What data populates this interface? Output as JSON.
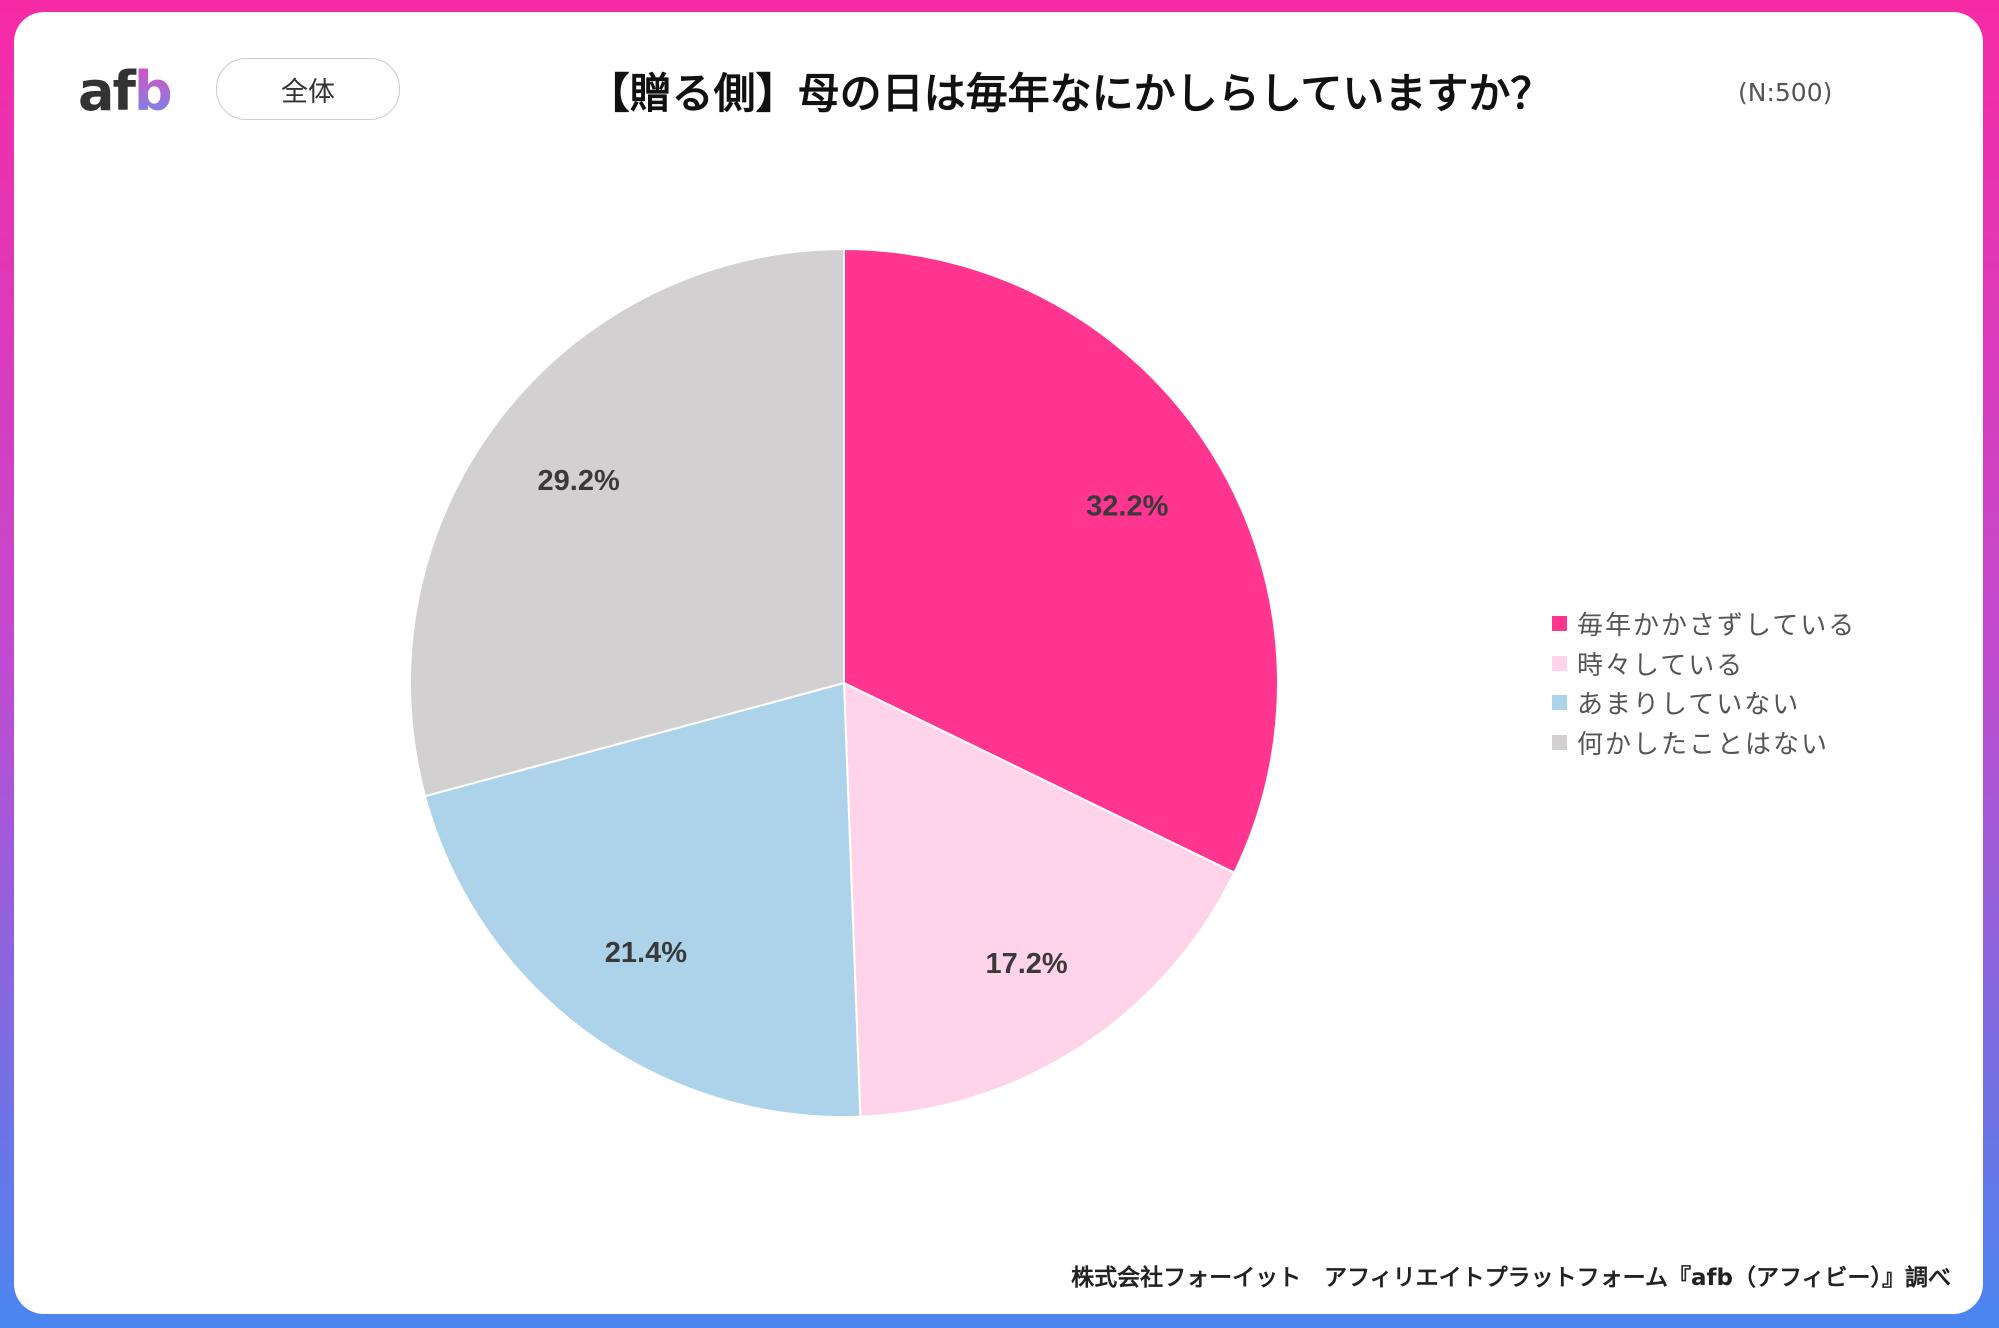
{
  "header": {
    "logo": "afb",
    "segment": "全体",
    "title": "【贈る側】母の日は毎年なにかしらしていますか？",
    "sample": "(N:500)"
  },
  "footer": "株式会社フォーイット　アフィリエイトプラットフォーム『afb（アフィビー）』調べ",
  "chart_data": {
    "type": "pie",
    "title": "【贈る側】母の日は毎年なにかしらしていますか？",
    "categories": [
      "毎年かかさずしている",
      "時々している",
      "あまりしていない",
      "何かしたことはない"
    ],
    "values": [
      32.2,
      17.2,
      21.4,
      29.2
    ],
    "labels": [
      "32.2%",
      "17.2%",
      "21.4%",
      "29.2%"
    ],
    "colors": [
      "#ff3590",
      "#ffd3ea",
      "#acd3ea",
      "#d3d0d1"
    ],
    "start": "12 o'clock, clockwise",
    "legend": "right"
  }
}
